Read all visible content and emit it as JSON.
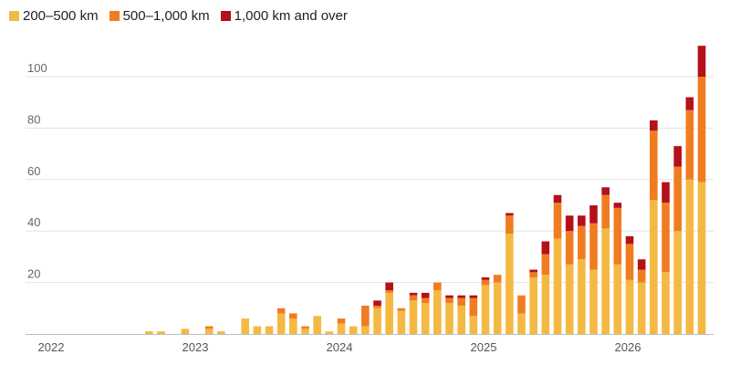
{
  "chart_data": {
    "type": "bar",
    "stacked": true,
    "grid": true,
    "legend_position": "top-left",
    "ylim": [
      0,
      115
    ],
    "y_ticks": [
      20,
      40,
      60,
      80,
      100
    ],
    "x_tick_labels": [
      "2022",
      "2023",
      "2024",
      "2025",
      "2026"
    ],
    "x_start": "2022-01",
    "x": [
      "2022-09",
      "2022-10",
      "2022-11",
      "2022-12",
      "2023-01",
      "2023-02",
      "2023-03",
      "2023-04",
      "2023-05",
      "2023-06",
      "2023-07",
      "2023-08",
      "2023-09",
      "2023-10",
      "2023-11",
      "2023-12",
      "2024-01",
      "2024-02",
      "2024-03",
      "2024-04",
      "2024-05",
      "2024-06",
      "2024-07",
      "2024-08",
      "2024-09",
      "2024-10",
      "2024-11",
      "2024-12",
      "2025-01",
      "2025-02",
      "2025-03",
      "2025-04",
      "2025-05",
      "2025-06",
      "2025-07",
      "2025-08",
      "2025-09",
      "2025-10",
      "2025-11",
      "2025-12",
      "2026-01",
      "2026-02",
      "2026-03",
      "2026-04",
      "2026-05",
      "2026-06",
      "2026-07"
    ],
    "series": [
      {
        "name": "200–500 km",
        "color": "#f4b942",
        "values": [
          1,
          1,
          0,
          2,
          0,
          2,
          1,
          0,
          6,
          3,
          3,
          8,
          6,
          2,
          7,
          1,
          4,
          3,
          3,
          10,
          16,
          9,
          13,
          12,
          17,
          12,
          11,
          7,
          19,
          20,
          39,
          8,
          22,
          23,
          37,
          27,
          29,
          25,
          41,
          27,
          21,
          20,
          52,
          24,
          40,
          60,
          59
        ]
      },
      {
        "name": "500–1,000 km",
        "color": "#f07c22",
        "values": [
          0,
          0,
          0,
          0,
          0,
          1,
          0,
          0,
          0,
          0,
          0,
          2,
          2,
          1,
          0,
          0,
          2,
          0,
          8,
          1,
          1,
          1,
          2,
          2,
          3,
          2,
          3,
          7,
          2,
          3,
          7,
          7,
          2,
          8,
          14,
          13,
          13,
          18,
          13,
          22,
          14,
          5,
          27,
          27,
          25,
          27,
          41
        ]
      },
      {
        "name": "1,000 km and over",
        "color": "#b4111a",
        "values": [
          0,
          0,
          0,
          0,
          0,
          0,
          0,
          0,
          0,
          0,
          0,
          0,
          0,
          0,
          0,
          0,
          0,
          0,
          0,
          2,
          3,
          0,
          1,
          2,
          0,
          1,
          1,
          1,
          1,
          0,
          1,
          0,
          1,
          5,
          3,
          6,
          4,
          7,
          3,
          2,
          3,
          4,
          4,
          8,
          8,
          5,
          12
        ]
      }
    ]
  }
}
